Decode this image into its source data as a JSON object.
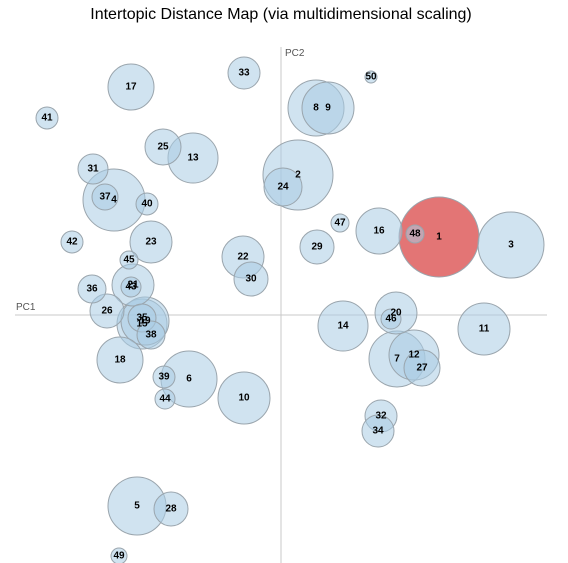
{
  "chart_data": {
    "type": "scatter",
    "title": "Intertopic Distance Map (via multidimensional scaling)",
    "xlabel": "PC1",
    "ylabel": "PC2",
    "xlim": [
      -266,
      266
    ],
    "ylim": [
      -250,
      268
    ],
    "colors": {
      "default": "#a9cce3",
      "selected": "#e06666"
    },
    "selected_topic": "1",
    "topics": [
      {
        "id": "1",
        "x": 158,
        "y": 78,
        "r": 40
      },
      {
        "id": "2",
        "x": 17,
        "y": 140,
        "r": 35
      },
      {
        "id": "3",
        "x": 230,
        "y": 70,
        "r": 33
      },
      {
        "id": "4",
        "x": -167,
        "y": 115,
        "r": 31
      },
      {
        "id": "5",
        "x": -144,
        "y": -191,
        "r": 29
      },
      {
        "id": "6",
        "x": -92,
        "y": -64,
        "r": 28
      },
      {
        "id": "7",
        "x": 116,
        "y": -44,
        "r": 28
      },
      {
        "id": "8",
        "x": 35,
        "y": 207,
        "r": 28
      },
      {
        "id": "9",
        "x": 47,
        "y": 207,
        "r": 26
      },
      {
        "id": "10",
        "x": -37,
        "y": -83,
        "r": 26
      },
      {
        "id": "11",
        "x": 203,
        "y": -14,
        "r": 26
      },
      {
        "id": "12",
        "x": 133,
        "y": -40,
        "r": 25
      },
      {
        "id": "13",
        "x": -88,
        "y": 157,
        "r": 25
      },
      {
        "id": "14",
        "x": 62,
        "y": -11,
        "r": 25
      },
      {
        "id": "15",
        "x": -139,
        "y": -9,
        "r": 25
      },
      {
        "id": "16",
        "x": 98,
        "y": 84,
        "r": 23
      },
      {
        "id": "17",
        "x": -150,
        "y": 228,
        "r": 23
      },
      {
        "id": "18",
        "x": -161,
        "y": -45,
        "r": 23
      },
      {
        "id": "19",
        "x": -136,
        "y": -6,
        "r": 24
      },
      {
        "id": "20",
        "x": 115,
        "y": 2,
        "r": 21
      },
      {
        "id": "21",
        "x": -148,
        "y": 30,
        "r": 21
      },
      {
        "id": "22",
        "x": -38,
        "y": 58,
        "r": 21
      },
      {
        "id": "23",
        "x": -130,
        "y": 73,
        "r": 21
      },
      {
        "id": "24",
        "x": 2,
        "y": 128,
        "r": 19
      },
      {
        "id": "25",
        "x": -118,
        "y": 168,
        "r": 18
      },
      {
        "id": "26",
        "x": -174,
        "y": 4,
        "r": 17
      },
      {
        "id": "27",
        "x": 141,
        "y": -53,
        "r": 18
      },
      {
        "id": "28",
        "x": -110,
        "y": -194,
        "r": 17
      },
      {
        "id": "29",
        "x": 36,
        "y": 68,
        "r": 17
      },
      {
        "id": "30",
        "x": -30,
        "y": 36,
        "r": 17
      },
      {
        "id": "31",
        "x": -188,
        "y": 146,
        "r": 15
      },
      {
        "id": "32",
        "x": 100,
        "y": -101,
        "r": 16
      },
      {
        "id": "33",
        "x": -37,
        "y": 242,
        "r": 16
      },
      {
        "id": "34",
        "x": 97,
        "y": -116,
        "r": 16
      },
      {
        "id": "35",
        "x": -139,
        "y": -3,
        "r": 14
      },
      {
        "id": "36",
        "x": -189,
        "y": 26,
        "r": 14
      },
      {
        "id": "37",
        "x": -176,
        "y": 118,
        "r": 13
      },
      {
        "id": "38",
        "x": -130,
        "y": -20,
        "r": 14
      },
      {
        "id": "39",
        "x": -117,
        "y": -62,
        "r": 11
      },
      {
        "id": "40",
        "x": -134,
        "y": 111,
        "r": 11
      },
      {
        "id": "41",
        "x": -234,
        "y": 197,
        "r": 11
      },
      {
        "id": "42",
        "x": -209,
        "y": 73,
        "r": 11
      },
      {
        "id": "43",
        "x": -150,
        "y": 28,
        "r": 10
      },
      {
        "id": "44",
        "x": -116,
        "y": -84,
        "r": 10
      },
      {
        "id": "45",
        "x": -152,
        "y": 55,
        "r": 9
      },
      {
        "id": "46",
        "x": 110,
        "y": -4,
        "r": 10
      },
      {
        "id": "47",
        "x": 59,
        "y": 92,
        "r": 9
      },
      {
        "id": "48",
        "x": 134,
        "y": 81,
        "r": 9
      },
      {
        "id": "49",
        "x": -162,
        "y": -241,
        "r": 8
      },
      {
        "id": "50",
        "x": 90,
        "y": 238,
        "r": 6
      }
    ]
  }
}
